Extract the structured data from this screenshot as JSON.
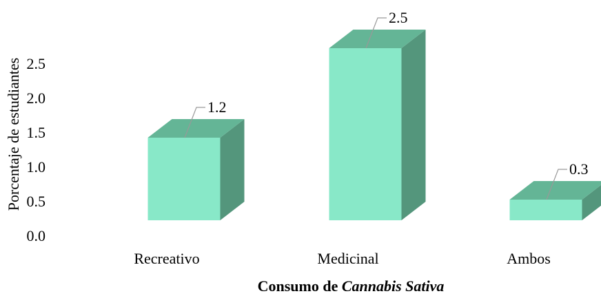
{
  "chart_data": {
    "type": "bar3d",
    "y_axis_label": "Porcentaje de estudiantes",
    "x_axis_label": {
      "normal": "Consumo de",
      "italic": "Cannabis Sativa"
    },
    "categories": [
      "Recreativo",
      "Medicinal",
      "Ambos"
    ],
    "values": [
      1.2,
      2.5,
      0.3
    ],
    "colors": {
      "front": "#88e8c8",
      "top": "#64b596",
      "side": "#54967c"
    },
    "ylim": [
      0,
      3.0
    ],
    "yticks": [
      {
        "value": 0,
        "label": "0.0"
      },
      0.5,
      {
        "value": 1,
        "label": "1.0"
      },
      1.5,
      {
        "value": 2,
        "label": "2.0"
      },
      2.5
    ],
    "grid": false
  }
}
